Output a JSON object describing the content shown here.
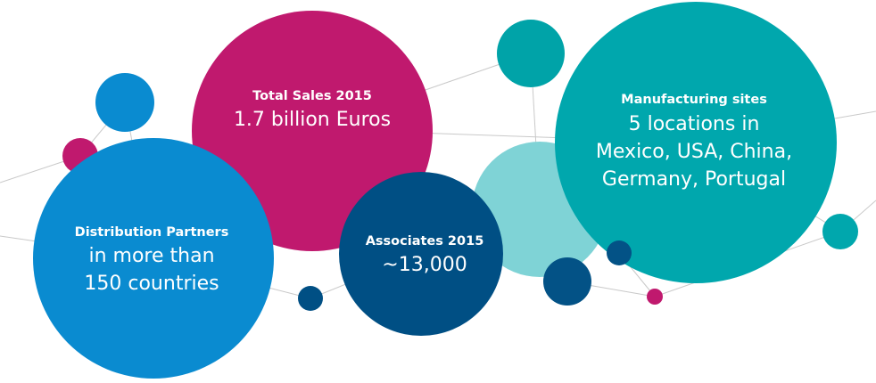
{
  "bubbles": [
    {
      "heading": "Total Sales 2015",
      "lines": [
        "1.7 billion Euros"
      ]
    },
    {
      "heading": "Distribution Partners",
      "lines": [
        "in more than",
        "150 countries"
      ]
    },
    {
      "heading": "Associates 2015",
      "lines": [
        "~13,000"
      ]
    },
    {
      "heading": "Manufacturing sites",
      "lines": [
        "5 locations in",
        "Mexico, USA, China,",
        "Germany, Portugal"
      ]
    }
  ]
}
